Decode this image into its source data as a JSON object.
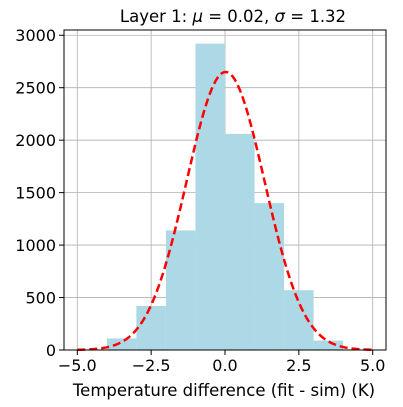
{
  "chart_data": {
    "type": "bar",
    "title_prefix": "Layer 1: ",
    "title_mu_symbol": "μ",
    "title_mu_value": " = 0.02, ",
    "title_sigma_symbol": "σ",
    "title_sigma_value": " = 1.32",
    "xlabel": "Temperature difference (fit - sim) (K)",
    "ylabel": "",
    "xlim": [
      -5.45,
      5.45
    ],
    "ylim": [
      0,
      3050
    ],
    "xticks": [
      -5.0,
      -2.5,
      0.0,
      2.5,
      5.0
    ],
    "xtick_labels": [
      "−5.0",
      "−2.5",
      "0.0",
      "2.5",
      "5.0"
    ],
    "yticks": [
      0,
      500,
      1000,
      1500,
      2000,
      2500,
      3000
    ],
    "ytick_labels": [
      "0",
      "500",
      "1000",
      "1500",
      "2000",
      "2500",
      "3000"
    ],
    "grid": true,
    "series": [
      {
        "kind": "histogram",
        "color": "#add8e6",
        "bin_edges": [
          -5.0,
          -4.0,
          -3.0,
          -2.0,
          -1.0,
          0.0,
          1.0,
          2.0,
          3.0,
          4.0,
          5.0
        ],
        "counts": [
          5,
          110,
          420,
          1140,
          2920,
          2060,
          1400,
          570,
          90,
          5
        ]
      },
      {
        "kind": "gaussian-fit",
        "color": "#ff0000",
        "style": "dashed",
        "mu": 0.02,
        "sigma": 1.32,
        "peak": 2650
      }
    ]
  }
}
